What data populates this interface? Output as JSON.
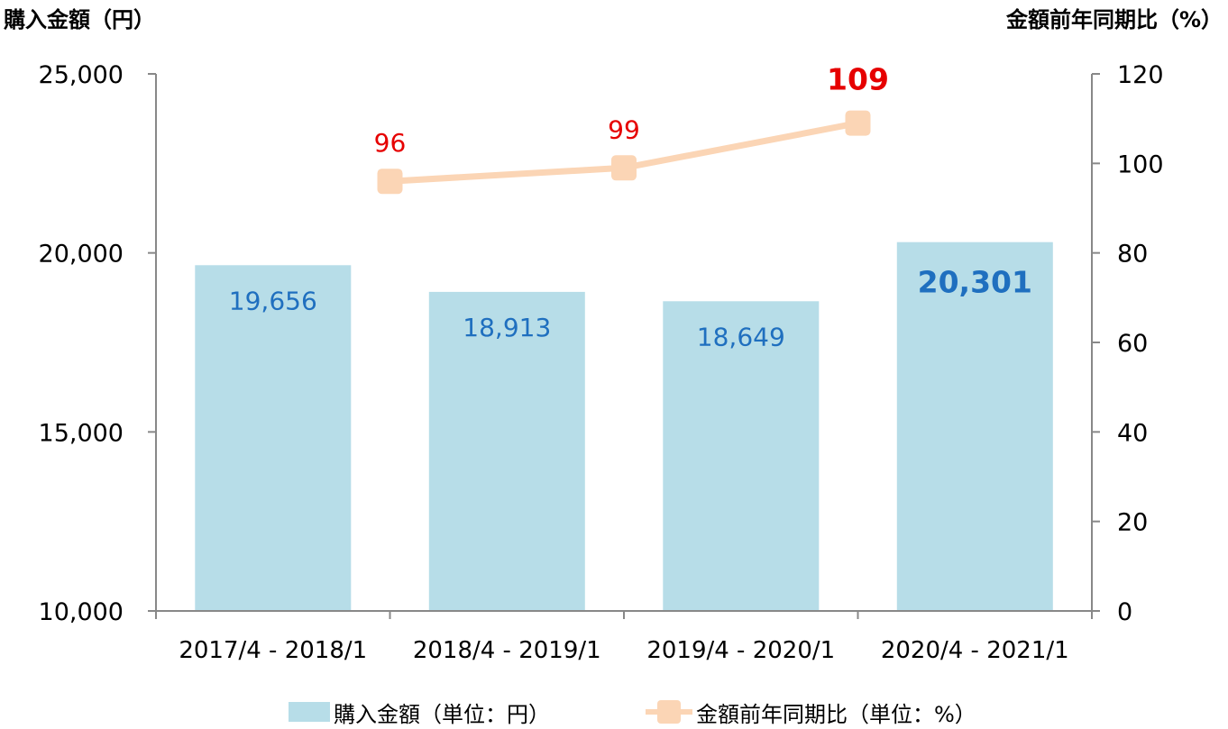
{
  "chart_data": {
    "type": "bar",
    "categories": [
      "2017/4 - 2018/1",
      "2018/4 - 2019/1",
      "2019/4 - 2020/1",
      "2020/4 - 2021/1"
    ],
    "series": [
      {
        "name": "購入金額（単位：円）",
        "chart_type": "bar",
        "axis": "left",
        "values": [
          19656,
          18913,
          18649,
          20301
        ],
        "labels": [
          "19,656",
          "18,913",
          "18,649",
          "20,301"
        ],
        "color": "#b7dde8",
        "label_color": "#1f6fbf",
        "highlight_index": 3
      },
      {
        "name": "金額前年同期比（単位：%）",
        "chart_type": "line",
        "axis": "right",
        "values": [
          null,
          96,
          99,
          109
        ],
        "labels": [
          "",
          "96",
          "99",
          "109"
        ],
        "color": "#fbd5b5",
        "label_color": "#e60000",
        "highlight_index": 3
      }
    ],
    "left_axis": {
      "title": "購入金額（円）",
      "ylim": [
        10000,
        25000
      ],
      "ticks": [
        10000,
        15000,
        20000,
        25000
      ],
      "tick_labels": [
        "10,000",
        "15,000",
        "20,000",
        "25,000"
      ]
    },
    "right_axis": {
      "title": "金額前年同期比（%）",
      "ylim": [
        0,
        120
      ],
      "ticks": [
        0,
        20,
        40,
        60,
        80,
        100,
        120
      ],
      "tick_labels": [
        "0",
        "20",
        "40",
        "60",
        "80",
        "100",
        "120"
      ]
    },
    "grid": false,
    "legend_position": "bottom",
    "axis_color": "#888888"
  }
}
